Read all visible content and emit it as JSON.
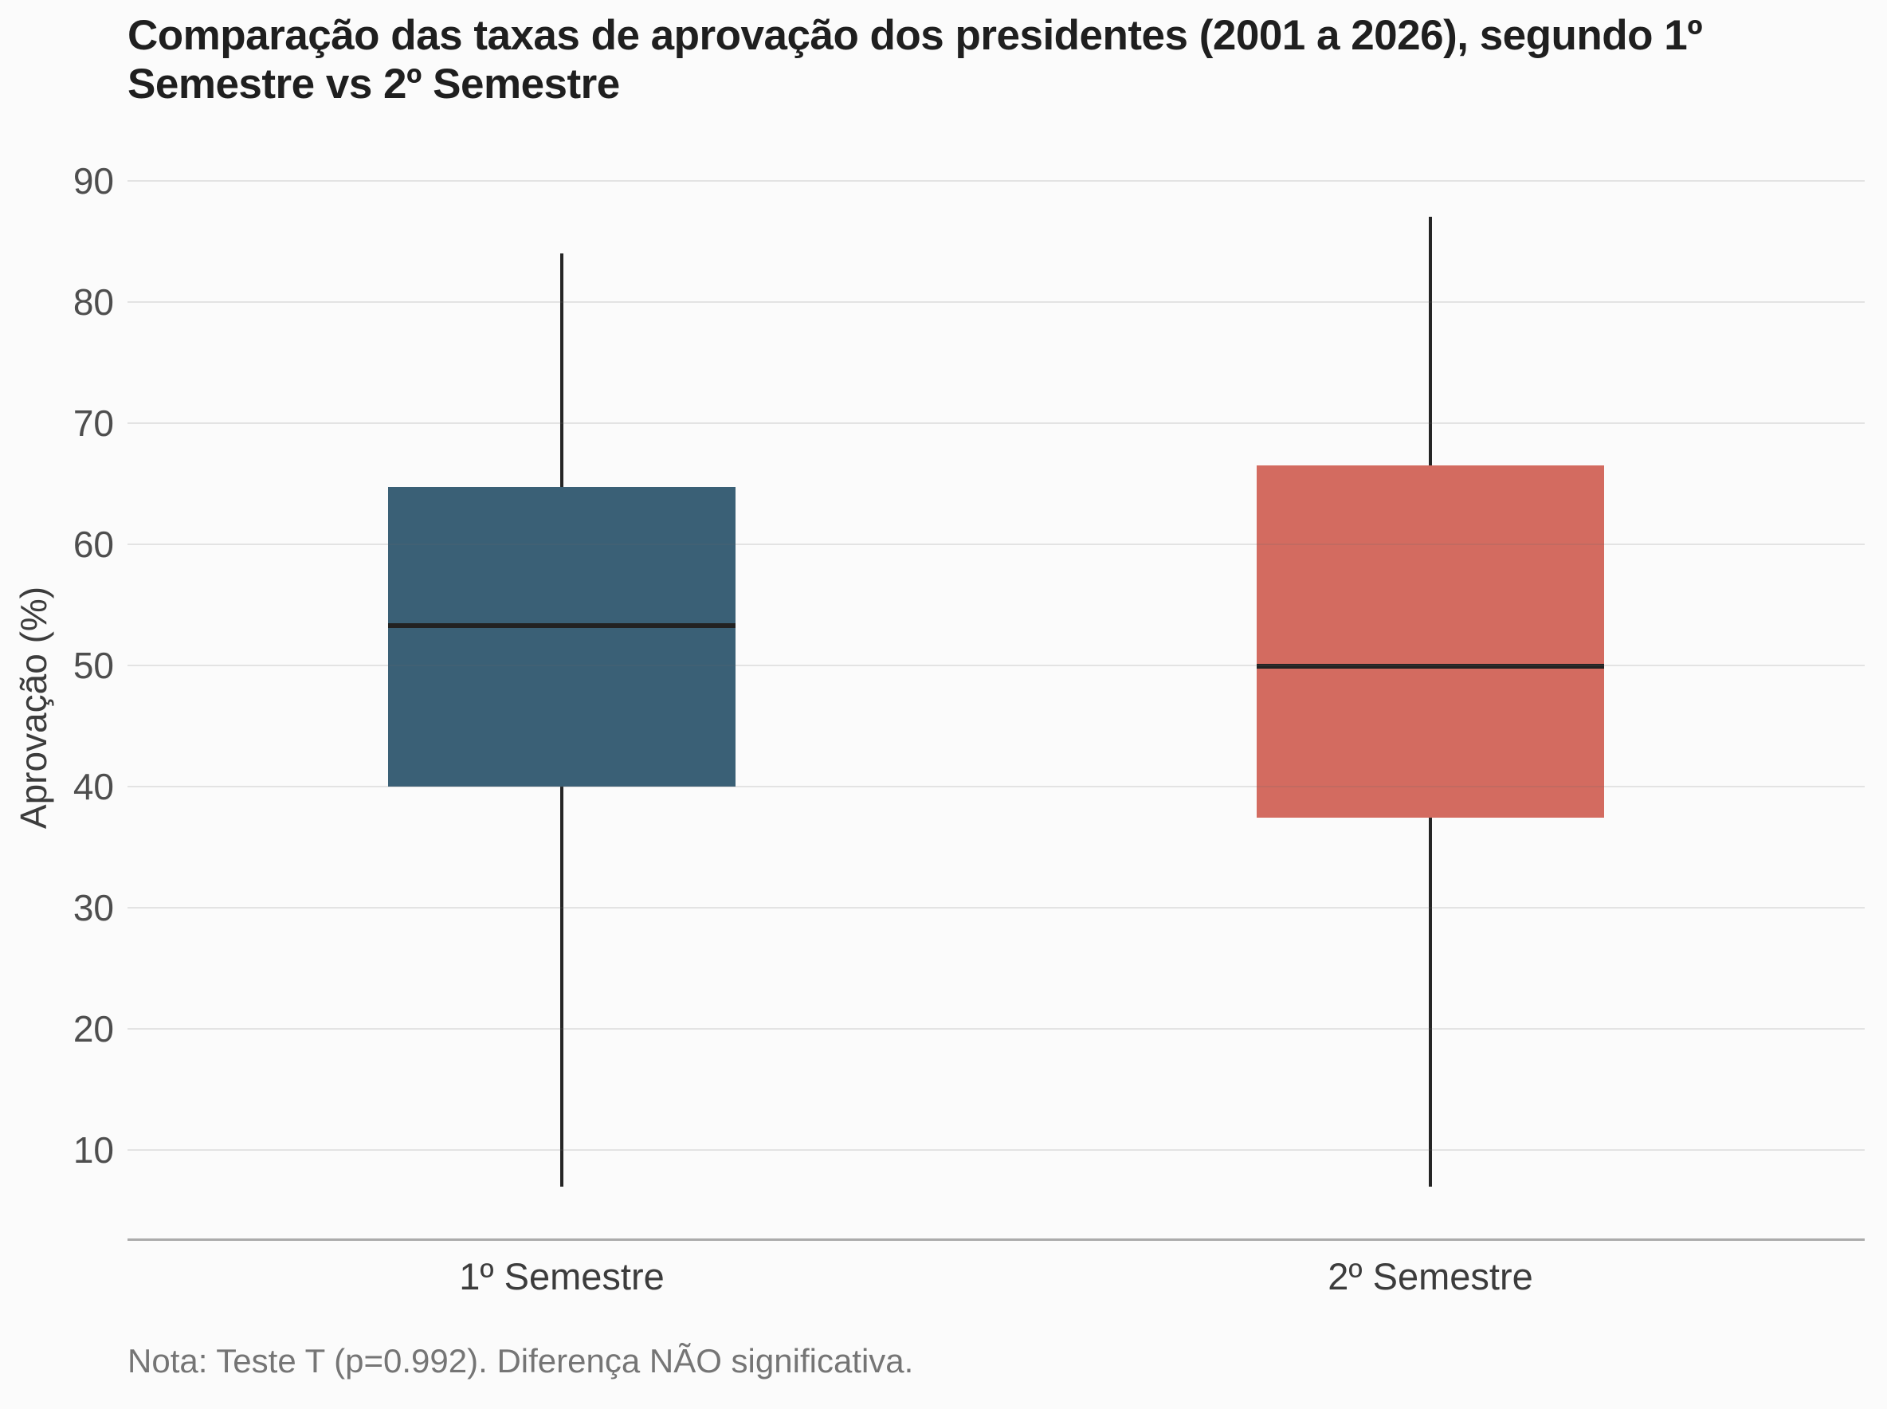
{
  "title": "Comparação das taxas de aprovação dos presidentes (2001 a 2026), segundo 1º Semestre vs 2º Semestre",
  "note": "Nota: Teste T (p=0.992). Diferença NÃO significativa.",
  "y_axis": {
    "label": "Aprovação (%)",
    "ticks": [
      10,
      20,
      30,
      40,
      50,
      60,
      70,
      80,
      90
    ]
  },
  "x_axis": {
    "categories": [
      "1º Semestre",
      "2º Semestre"
    ]
  },
  "colors": {
    "box1_fill": "#3A6076",
    "box2_fill": "#D36B60",
    "whisker": "#252525",
    "median": "#222222",
    "background": "#fbfbfb",
    "gridline": "#e4e4e4",
    "axis_line": "#ababab"
  },
  "chart_data": {
    "type": "boxplot",
    "title": "Comparação das taxas de aprovação dos presidentes (2001 a 2026), segundo 1º Semestre vs 2º Semestre",
    "categories": [
      "1º Semestre",
      "2º Semestre"
    ],
    "series": [
      {
        "name": "1º Semestre",
        "color": "#3A6076",
        "min": 7,
        "q1": 40,
        "median": 53.3,
        "q3": 64.7,
        "max": 84
      },
      {
        "name": "2º Semestre",
        "color": "#D36B60",
        "min": 7,
        "q1": 37.4,
        "median": 49.9,
        "q3": 66.5,
        "max": 87
      }
    ],
    "xlabel": "",
    "ylabel": "Aprovação (%)",
    "ylim": [
      2.7,
      93
    ],
    "yticks": [
      10,
      20,
      30,
      40,
      50,
      60,
      70,
      80,
      90
    ],
    "grid": true,
    "legend": false,
    "whisker_caps": false,
    "annotation": "Nota: Teste T (p=0.992). Diferença NÃO significativa."
  }
}
